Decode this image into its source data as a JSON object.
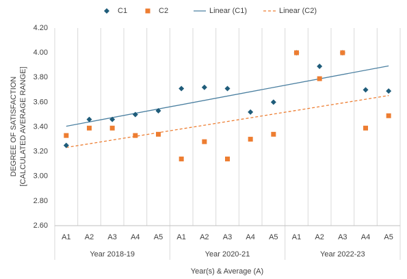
{
  "chart_data": {
    "type": "scatter",
    "y_label": [
      "DEGREE OF SATISFACTION",
      "[CALCULATED AVERAGE RANGE]"
    ],
    "x_label": "Year(s) & Average (A)",
    "groups": [
      {
        "label": "Year 2018-19",
        "categories": [
          "A1",
          "A2",
          "A3",
          "A4",
          "A5"
        ]
      },
      {
        "label": "Year 2020-21",
        "categories": [
          "A1",
          "A2",
          "A3",
          "A4",
          "A5"
        ]
      },
      {
        "label": "Year 2022-23",
        "categories": [
          "A1",
          "A2",
          "A3",
          "A4",
          "A5"
        ]
      }
    ],
    "series": [
      {
        "name": "C1",
        "color": "#1f5c7a",
        "marker": "diamond",
        "values": [
          3.25,
          3.46,
          3.46,
          3.5,
          3.53,
          3.71,
          3.72,
          3.71,
          3.52,
          3.6,
          4.0,
          3.89,
          4.0,
          3.7,
          3.69
        ]
      },
      {
        "name": "C2",
        "color": "#ed7d31",
        "marker": "square",
        "values": [
          3.33,
          3.39,
          3.39,
          3.33,
          3.34,
          3.14,
          3.28,
          3.14,
          3.3,
          3.34,
          4.0,
          3.79,
          4.0,
          3.39,
          3.49
        ]
      }
    ],
    "trendlines": [
      {
        "name": "Linear (C1)",
        "color": "#4a7fa0",
        "dashed": false
      },
      {
        "name": "Linear (C2)",
        "color": "#ed7d31",
        "dashed": true
      }
    ],
    "ylim": [
      2.6,
      4.2
    ],
    "yticks": [
      {
        "value": 2.6,
        "label": "2.60"
      },
      {
        "value": 2.8,
        "label": "2.80"
      },
      {
        "value": 3.0,
        "label": "3.00"
      },
      {
        "value": 3.2,
        "label": "3.20"
      },
      {
        "value": 3.4,
        "label": "3.40"
      },
      {
        "value": 3.6,
        "label": "3.60"
      },
      {
        "value": 3.8,
        "label": "3.80"
      },
      {
        "value": 4.0,
        "label": "4.00"
      },
      {
        "value": 4.2,
        "label": "4.20"
      }
    ],
    "grid": "vertical"
  }
}
